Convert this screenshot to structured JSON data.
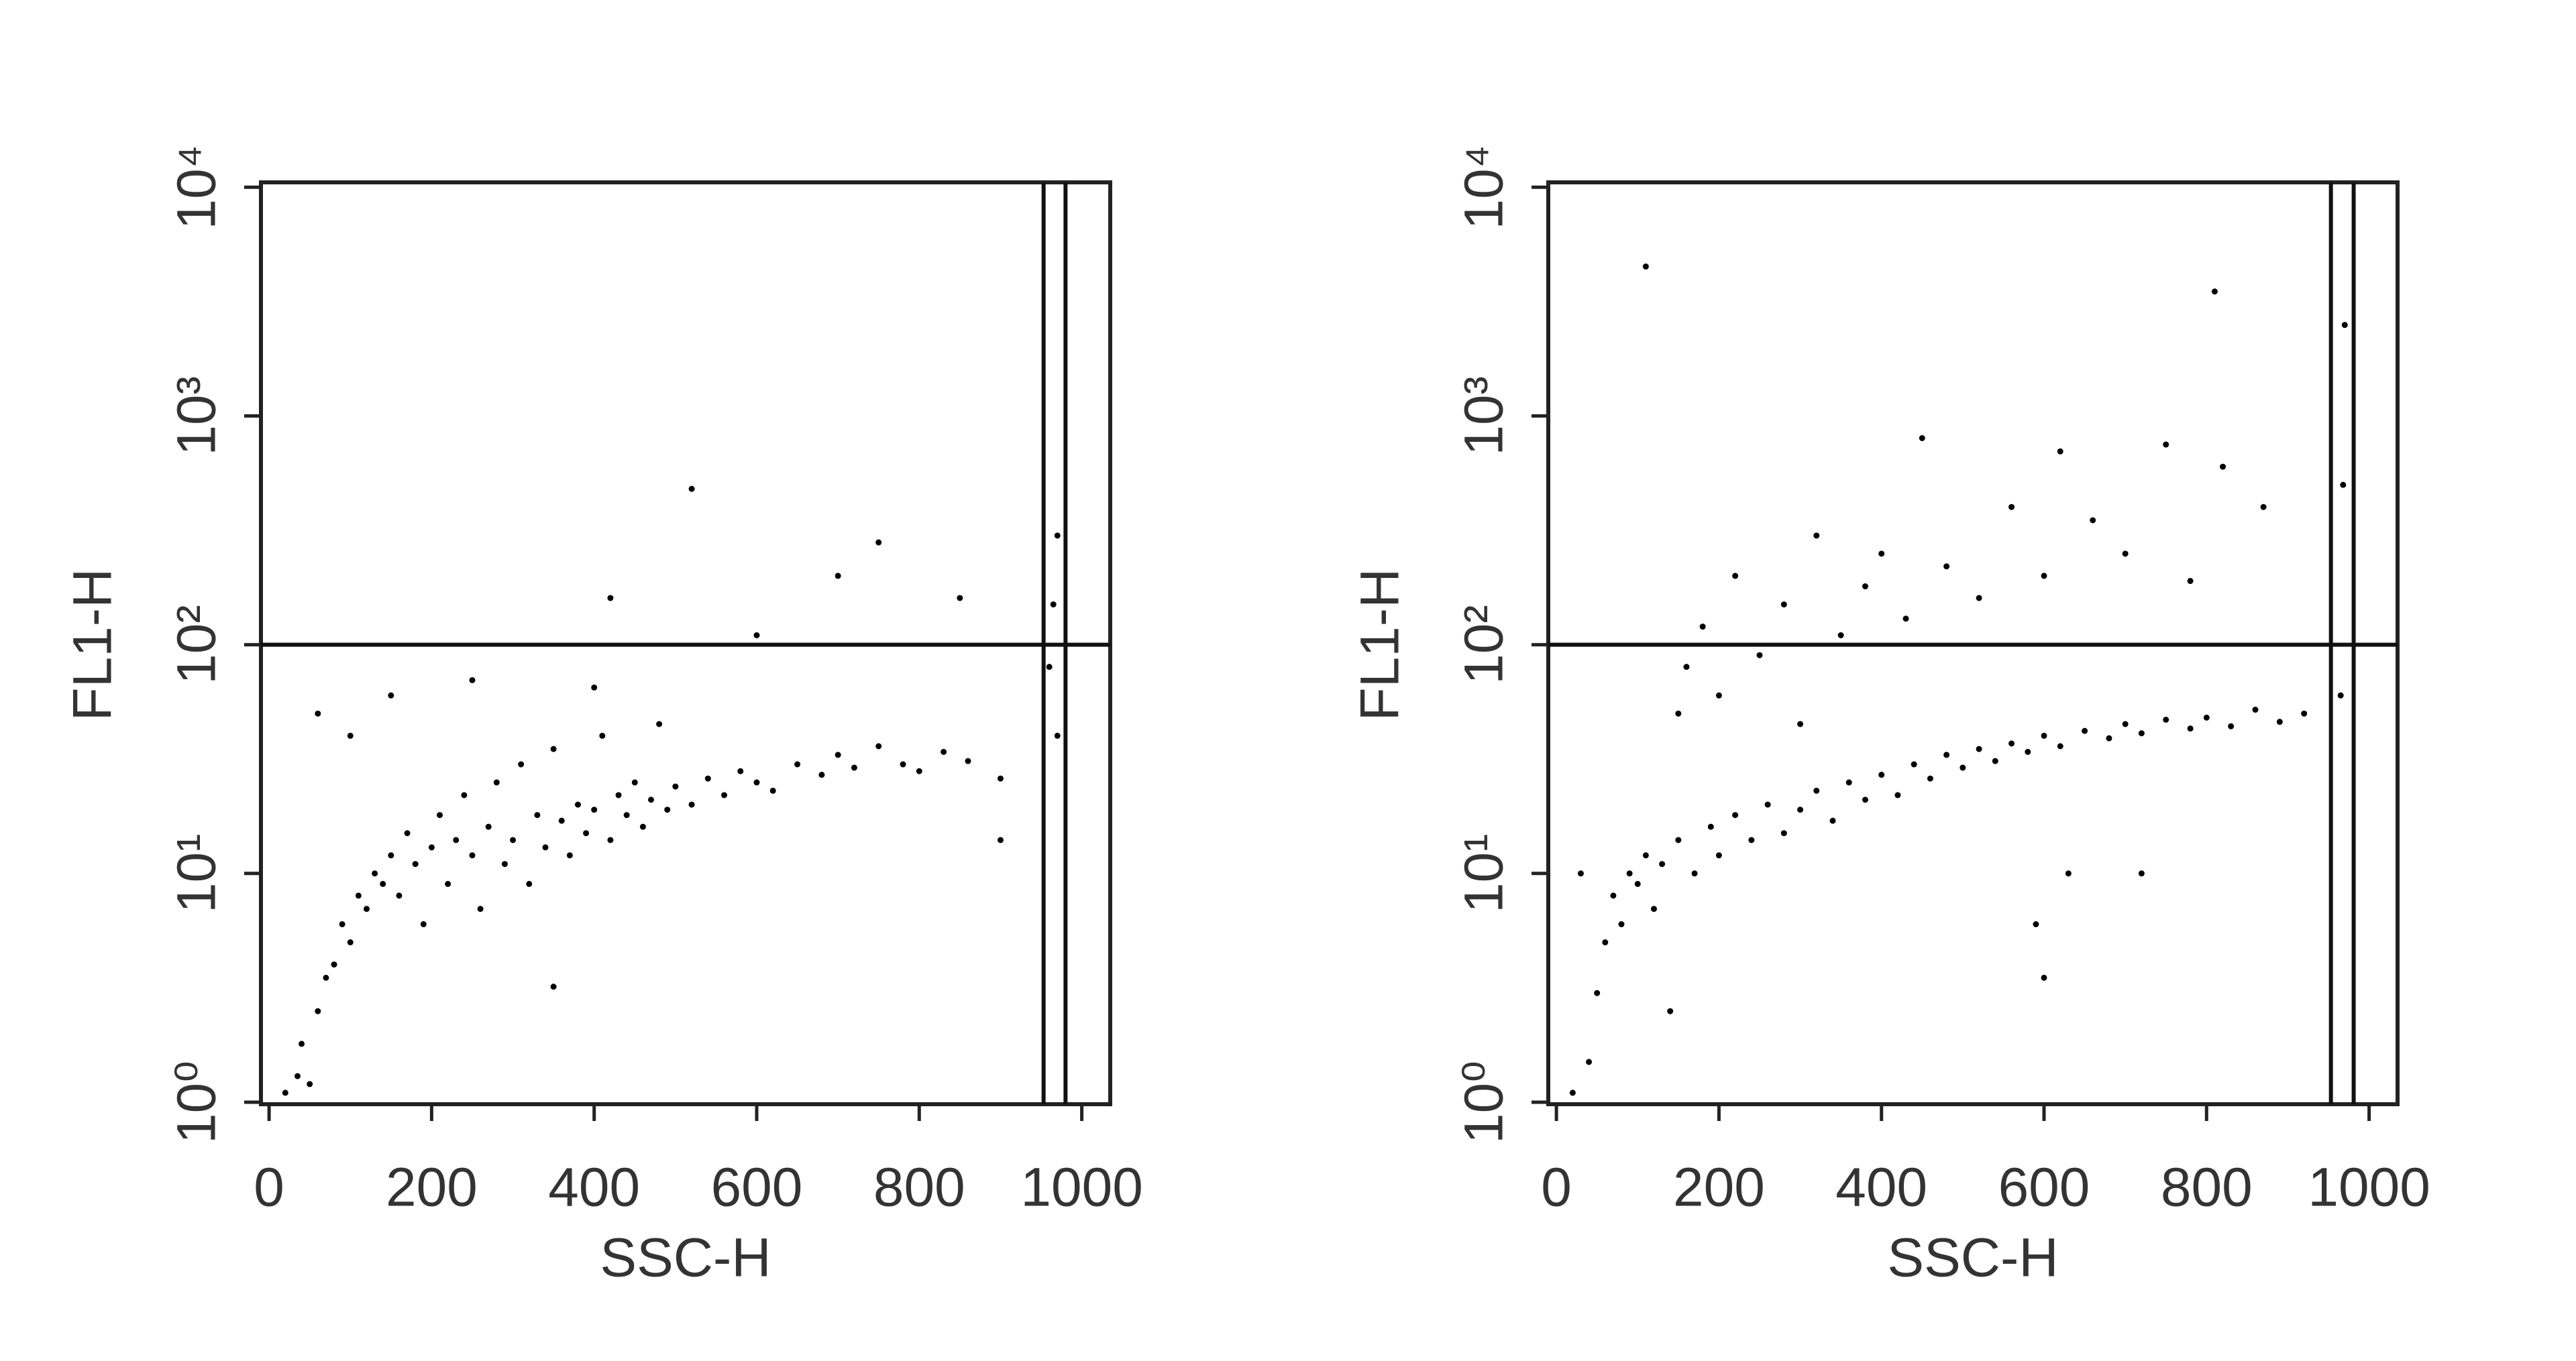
{
  "chart_data": [
    {
      "type": "scatter",
      "x_label": "SSC-H",
      "y_label": "FL1-H",
      "log_y": true,
      "color": "#000000",
      "xlim": [
        -10,
        1035
      ],
      "ylim": [
        0.98,
        10500
      ],
      "xticks": [
        0,
        200,
        400,
        600,
        800,
        1000
      ],
      "yticks": [
        {
          "value": 1,
          "label": "10⁰"
        },
        {
          "value": 10,
          "label": "10¹"
        },
        {
          "value": 100,
          "label": "10²"
        },
        {
          "value": 1000,
          "label": "10³"
        },
        {
          "value": 10000,
          "label": "10⁴"
        }
      ],
      "hlines": [
        100
      ],
      "vlines": [
        953,
        980
      ],
      "x": [
        20,
        35,
        50,
        40,
        60,
        70,
        80,
        90,
        100,
        110,
        120,
        130,
        140,
        150,
        160,
        170,
        180,
        190,
        200,
        210,
        220,
        230,
        240,
        250,
        260,
        270,
        280,
        290,
        300,
        310,
        320,
        330,
        340,
        350,
        360,
        370,
        380,
        390,
        400,
        410,
        420,
        430,
        440,
        450,
        460,
        470,
        480,
        490,
        500,
        520,
        540,
        560,
        580,
        600,
        620,
        650,
        680,
        700,
        720,
        750,
        780,
        800,
        830,
        860,
        900,
        60,
        100,
        150,
        250,
        400,
        520,
        420,
        600,
        700,
        750,
        850,
        960,
        965,
        970,
        970,
        350,
        900
      ],
      "y": [
        1.1,
        1.3,
        1.2,
        1.8,
        2.5,
        3.5,
        4,
        6,
        5,
        8,
        7,
        10,
        9,
        12,
        8,
        15,
        11,
        6,
        13,
        18,
        9,
        14,
        22,
        12,
        7,
        16,
        25,
        11,
        14,
        30,
        9,
        18,
        13,
        35,
        17,
        12,
        20,
        15,
        19,
        40,
        14,
        22,
        18,
        25,
        16,
        21,
        45,
        19,
        24,
        20,
        26,
        22,
        28,
        25,
        23,
        30,
        27,
        33,
        29,
        36,
        30,
        28,
        34,
        31,
        26,
        50,
        40,
        60,
        70,
        65,
        480,
        160,
        110,
        200,
        280,
        160,
        80,
        150,
        300,
        40,
        3.2,
        14
      ]
    },
    {
      "type": "scatter",
      "x_label": "SSC-H",
      "y_label": "FL1-H",
      "log_y": true,
      "color": "#000000",
      "xlim": [
        -10,
        1035
      ],
      "ylim": [
        0.98,
        10500
      ],
      "xticks": [
        0,
        200,
        400,
        600,
        800,
        1000
      ],
      "yticks": [
        {
          "value": 1,
          "label": "10⁰"
        },
        {
          "value": 10,
          "label": "10¹"
        },
        {
          "value": 100,
          "label": "10²"
        },
        {
          "value": 1000,
          "label": "10³"
        },
        {
          "value": 10000,
          "label": "10⁴"
        }
      ],
      "hlines": [
        100
      ],
      "vlines": [
        953,
        981
      ],
      "x": [
        20,
        40,
        50,
        60,
        70,
        80,
        90,
        100,
        110,
        120,
        130,
        150,
        170,
        190,
        200,
        220,
        240,
        260,
        280,
        300,
        320,
        340,
        360,
        380,
        400,
        420,
        440,
        460,
        480,
        500,
        520,
        540,
        560,
        580,
        600,
        620,
        650,
        680,
        700,
        720,
        750,
        780,
        800,
        830,
        860,
        890,
        920,
        150,
        160,
        180,
        200,
        220,
        250,
        280,
        300,
        320,
        350,
        380,
        400,
        430,
        450,
        480,
        520,
        560,
        600,
        620,
        660,
        700,
        750,
        780,
        820,
        870,
        110,
        810,
        30,
        140,
        590,
        600,
        720,
        630,
        965,
        968,
        970
      ],
      "y": [
        1.1,
        1.5,
        3,
        5,
        8,
        6,
        10,
        9,
        12,
        7,
        11,
        14,
        10,
        16,
        12,
        18,
        14,
        20,
        15,
        19,
        23,
        17,
        25,
        21,
        27,
        22,
        30,
        26,
        33,
        29,
        35,
        31,
        37,
        34,
        40,
        36,
        42,
        39,
        45,
        41,
        47,
        43,
        48,
        44,
        52,
        46,
        50,
        50,
        80,
        120,
        60,
        200,
        90,
        150,
        45,
        300,
        110,
        180,
        250,
        130,
        800,
        220,
        160,
        400,
        200,
        700,
        350,
        250,
        750,
        190,
        600,
        400,
        4500,
        3500,
        10,
        2.5,
        6,
        3.5,
        10,
        10,
        60,
        500,
        2500
      ]
    }
  ]
}
